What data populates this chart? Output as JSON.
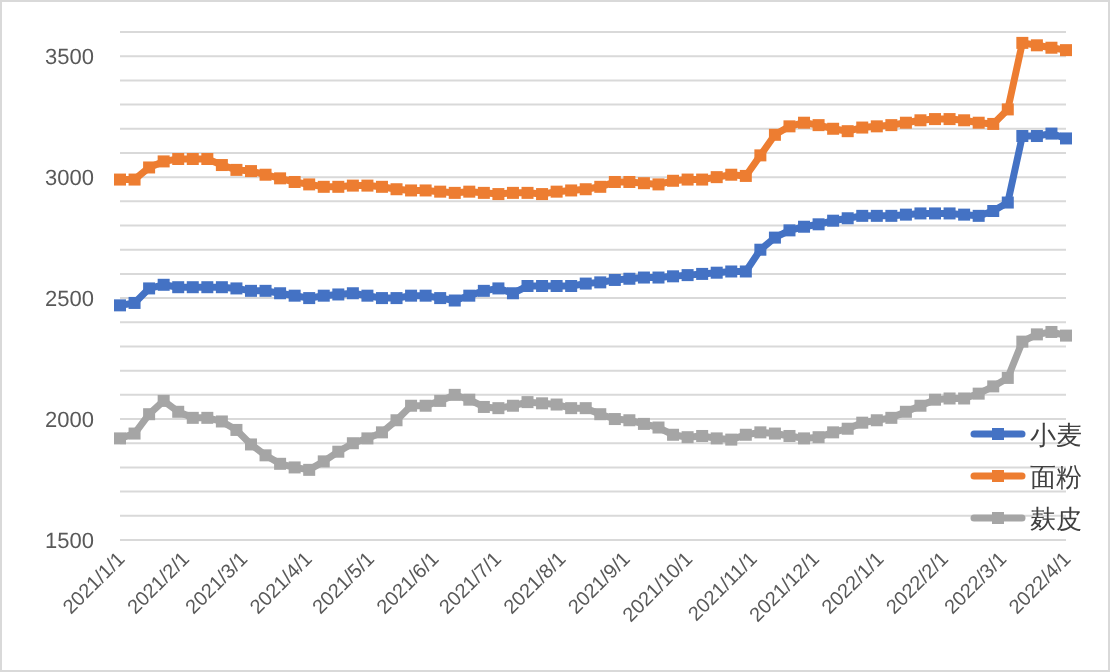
{
  "chart_data": {
    "type": "line",
    "x": [
      "2021-01-01",
      "2021-01-08",
      "2021-01-15",
      "2021-01-22",
      "2021-01-29",
      "2021-02-05",
      "2021-02-12",
      "2021-02-19",
      "2021-02-26",
      "2021-03-05",
      "2021-03-12",
      "2021-03-19",
      "2021-03-26",
      "2021-04-02",
      "2021-04-09",
      "2021-04-16",
      "2021-04-23",
      "2021-04-30",
      "2021-05-07",
      "2021-05-14",
      "2021-05-21",
      "2021-05-28",
      "2021-06-04",
      "2021-06-11",
      "2021-06-18",
      "2021-06-25",
      "2021-07-02",
      "2021-07-09",
      "2021-07-16",
      "2021-07-23",
      "2021-07-30",
      "2021-08-06",
      "2021-08-13",
      "2021-08-20",
      "2021-08-27",
      "2021-09-03",
      "2021-09-10",
      "2021-09-17",
      "2021-09-24",
      "2021-10-01",
      "2021-10-08",
      "2021-10-15",
      "2021-10-22",
      "2021-10-29",
      "2021-11-05",
      "2021-11-12",
      "2021-11-19",
      "2021-11-26",
      "2021-12-03",
      "2021-12-10",
      "2021-12-17",
      "2021-12-24",
      "2021-12-31",
      "2022-01-07",
      "2022-01-14",
      "2022-01-21",
      "2022-01-28",
      "2022-02-04",
      "2022-02-11",
      "2022-02-18",
      "2022-02-25",
      "2022-03-04",
      "2022-03-11",
      "2022-03-18",
      "2022-03-25",
      "2022-04-01"
    ],
    "series": [
      {
        "name": "小麦",
        "color": "#4472c4",
        "values": [
          2470,
          2480,
          2540,
          2555,
          2545,
          2545,
          2545,
          2545,
          2540,
          2530,
          2530,
          2520,
          2510,
          2500,
          2510,
          2515,
          2520,
          2510,
          2500,
          2500,
          2510,
          2510,
          2500,
          2490,
          2510,
          2530,
          2540,
          2520,
          2550,
          2550,
          2550,
          2550,
          2560,
          2565,
          2575,
          2580,
          2585,
          2585,
          2590,
          2595,
          2600,
          2605,
          2610,
          2610,
          2700,
          2750,
          2780,
          2795,
          2805,
          2820,
          2830,
          2840,
          2840,
          2840,
          2845,
          2850,
          2850,
          2850,
          2845,
          2840,
          2860,
          2895,
          3170,
          3170,
          3180,
          3160
        ]
      },
      {
        "name": "面粉",
        "color": "#ed7d31",
        "values": [
          2990,
          2990,
          3040,
          3065,
          3075,
          3075,
          3075,
          3050,
          3030,
          3025,
          3010,
          2995,
          2980,
          2970,
          2960,
          2960,
          2965,
          2965,
          2960,
          2950,
          2945,
          2945,
          2940,
          2935,
          2940,
          2935,
          2930,
          2935,
          2935,
          2930,
          2940,
          2945,
          2950,
          2960,
          2980,
          2980,
          2975,
          2970,
          2985,
          2990,
          2990,
          3000,
          3010,
          3005,
          3090,
          3175,
          3210,
          3225,
          3215,
          3200,
          3190,
          3205,
          3210,
          3215,
          3225,
          3235,
          3240,
          3240,
          3235,
          3225,
          3220,
          3280,
          3555,
          3545,
          3535,
          3525
        ]
      },
      {
        "name": "麸皮",
        "color": "#a5a5a5",
        "values": [
          1920,
          1940,
          2020,
          2075,
          2030,
          2005,
          2005,
          1990,
          1955,
          1895,
          1850,
          1815,
          1800,
          1790,
          1825,
          1865,
          1900,
          1920,
          1945,
          1995,
          2055,
          2055,
          2075,
          2100,
          2080,
          2050,
          2045,
          2055,
          2070,
          2065,
          2060,
          2045,
          2045,
          2020,
          2000,
          1995,
          1980,
          1965,
          1935,
          1925,
          1930,
          1920,
          1915,
          1935,
          1945,
          1940,
          1930,
          1920,
          1925,
          1945,
          1960,
          1985,
          1995,
          2005,
          2030,
          2055,
          2080,
          2085,
          2085,
          2105,
          2135,
          2170,
          2320,
          2350,
          2360,
          2345
        ]
      }
    ],
    "xlim": [
      "2021-01-01",
      "2022-04-01"
    ],
    "xticks": [
      {
        "value": "2021-01-01",
        "label": "2021/1/1"
      },
      {
        "value": "2021-02-01",
        "label": "2021/2/1"
      },
      {
        "value": "2021-03-01",
        "label": "2021/3/1"
      },
      {
        "value": "2021-04-01",
        "label": "2021/4/1"
      },
      {
        "value": "2021-05-01",
        "label": "2021/5/1"
      },
      {
        "value": "2021-06-01",
        "label": "2021/6/1"
      },
      {
        "value": "2021-07-01",
        "label": "2021/7/1"
      },
      {
        "value": "2021-08-01",
        "label": "2021/8/1"
      },
      {
        "value": "2021-09-01",
        "label": "2021/9/1"
      },
      {
        "value": "2021-10-01",
        "label": "2021/10/1"
      },
      {
        "value": "2021-11-01",
        "label": "2021/11/1"
      },
      {
        "value": "2021-12-01",
        "label": "2021/12/1"
      },
      {
        "value": "2022-01-01",
        "label": "2022/1/1"
      },
      {
        "value": "2022-02-01",
        "label": "2022/2/1"
      },
      {
        "value": "2022-03-01",
        "label": "2022/3/1"
      },
      {
        "value": "2022-04-01",
        "label": "2022/4/1"
      }
    ],
    "ylim": [
      1500,
      3600
    ],
    "yticks": [
      1500,
      {
        "value": 1600,
        "label": null
      },
      {
        "value": 1700,
        "label": null
      },
      {
        "value": 1800,
        "label": null
      },
      {
        "value": 1900,
        "label": null
      },
      2000,
      {
        "value": 2100,
        "label": null
      },
      {
        "value": 2200,
        "label": null
      },
      {
        "value": 2300,
        "label": null
      },
      {
        "value": 2400,
        "label": null
      },
      2500,
      {
        "value": 2600,
        "label": null
      },
      {
        "value": 2700,
        "label": null
      },
      {
        "value": 2800,
        "label": null
      },
      {
        "value": 2900,
        "label": null
      },
      3000,
      {
        "value": 3100,
        "label": null
      },
      {
        "value": 3200,
        "label": null
      },
      {
        "value": 3300,
        "label": null
      },
      {
        "value": 3400,
        "label": null
      },
      3500,
      {
        "value": 3600,
        "label": null
      }
    ],
    "grid": "y",
    "legend": "bottom right",
    "marker": "square",
    "line_style": "solid"
  }
}
